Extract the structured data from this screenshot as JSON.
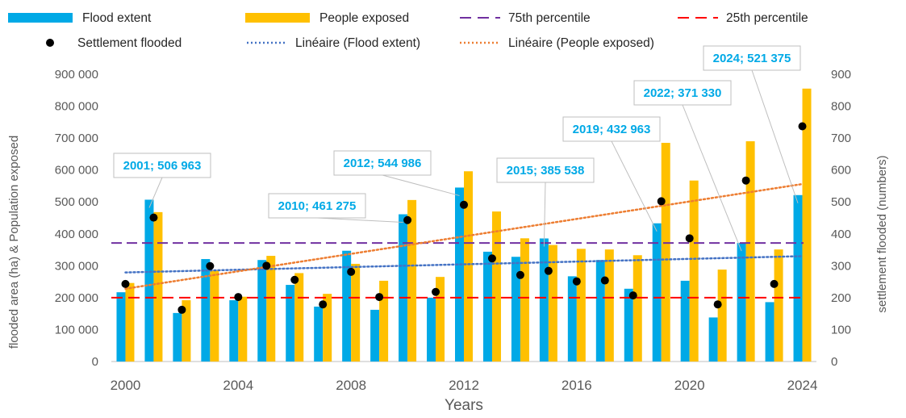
{
  "chart_data": {
    "type": "bar",
    "xlabel": "Years",
    "ylabel_left": "flooded area  (ha) & Population exposed",
    "ylabel_right": "settlement flooded (numbers)",
    "x_tick_labels": [
      "2000",
      "2004",
      "2008",
      "2012",
      "2016",
      "2020",
      "2024"
    ],
    "y_tick_labels_left": [
      "0",
      "100 000",
      "200 000",
      "300 000",
      "400 000",
      "500 000",
      "600 000",
      "700 000",
      "800 000",
      "900 000"
    ],
    "y_tick_labels_right": [
      "0",
      "100",
      "200",
      "300",
      "400",
      "500",
      "600",
      "700",
      "800",
      "900"
    ],
    "ylim_left": [
      0,
      900000
    ],
    "ylim_right": [
      0,
      900
    ],
    "categories": [
      2000,
      2001,
      2002,
      2003,
      2004,
      2005,
      2006,
      2007,
      2008,
      2009,
      2010,
      2011,
      2012,
      2013,
      2014,
      2015,
      2016,
      2017,
      2018,
      2019,
      2020,
      2021,
      2022,
      2023,
      2024
    ],
    "series": [
      {
        "name": "Flood extent",
        "kind": "bar",
        "axis": "left",
        "color": "#00A9E6",
        "values": [
          217000,
          506963,
          152000,
          321000,
          192000,
          318000,
          240000,
          172000,
          347000,
          162000,
          461275,
          200000,
          544986,
          344000,
          328000,
          385538,
          267000,
          318000,
          228000,
          432963,
          253000,
          138000,
          371330,
          186000,
          521375
        ]
      },
      {
        "name": "People exposed",
        "kind": "bar",
        "axis": "left",
        "color": "#FFC000",
        "values": [
          246000,
          468000,
          192000,
          285000,
          203000,
          331000,
          277000,
          212000,
          306000,
          253000,
          506000,
          265000,
          596000,
          470000,
          386000,
          365000,
          353000,
          351000,
          333000,
          685000,
          567000,
          288000,
          690000,
          351000,
          855000
        ]
      },
      {
        "name": "Settlement flooded",
        "kind": "scatter",
        "axis": "right",
        "color": "#000000",
        "values": [
          243,
          451,
          162,
          299,
          202,
          300,
          256,
          179,
          281,
          202,
          443,
          218,
          491,
          323,
          271,
          284,
          251,
          254,
          207,
          502,
          386,
          179,
          567,
          243,
          737
        ]
      },
      {
        "name": "75th percentile",
        "kind": "hline",
        "axis": "left",
        "color": "#7030A0",
        "value": 371330
      },
      {
        "name": "25th percentile",
        "kind": "hline",
        "axis": "left",
        "color": "#FF0000",
        "value": 200000
      },
      {
        "name": "Linéaire (Flood extent)",
        "kind": "trend",
        "axis": "left",
        "color": "#4472C4",
        "from": [
          2000,
          279000
        ],
        "to": [
          2024,
          330000
        ]
      },
      {
        "name": "Linéaire (People exposed)",
        "kind": "trend",
        "axis": "left",
        "color": "#ED7D31",
        "from": [
          2000,
          228000
        ],
        "to": [
          2024,
          556000
        ]
      }
    ],
    "legend_order": [
      "Flood extent",
      "People exposed",
      "75th percentile",
      "25th percentile",
      "Settlement flooded",
      "Linéaire (Flood extent)",
      "Linéaire (People exposed)"
    ],
    "legend_position": "top",
    "annotations": [
      {
        "text": "2001; 506 963",
        "year": 2001
      },
      {
        "text": "2010; 461 275",
        "year": 2010
      },
      {
        "text": "2012; 544 986",
        "year": 2012
      },
      {
        "text": "2015; 385 538",
        "year": 2015
      },
      {
        "text": "2019; 432 963",
        "year": 2019
      },
      {
        "text": "2022; 371 330",
        "year": 2022
      },
      {
        "text": "2024; 521 375",
        "year": 2024
      }
    ],
    "annotation_color": "#00A9E6",
    "grid": false
  }
}
